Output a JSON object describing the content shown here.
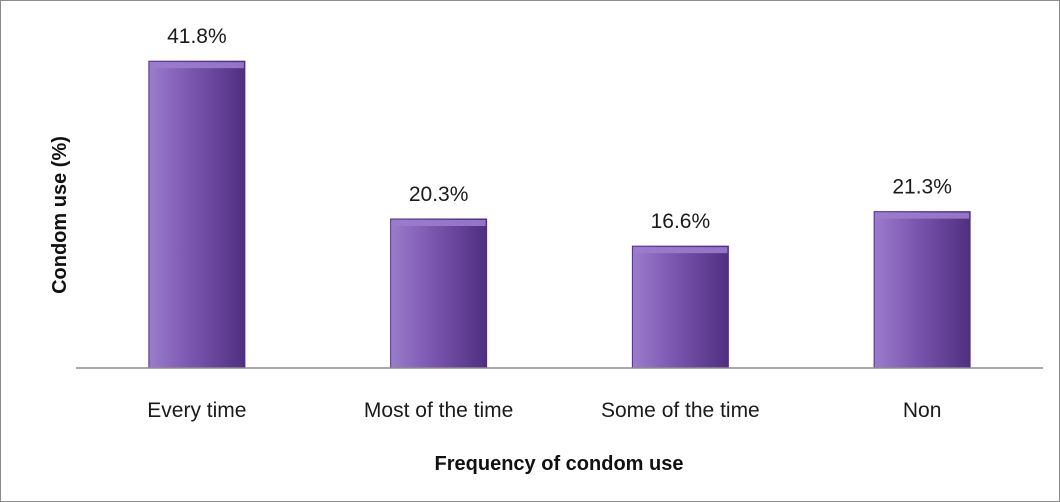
{
  "chart_data": {
    "type": "bar",
    "title": "",
    "xlabel": "Frequency of condom use",
    "ylabel": "Condom use (%)",
    "categories": [
      "Every time",
      "Most of the time",
      "Some of the time",
      "Non"
    ],
    "values": [
      41.8,
      20.3,
      16.6,
      21.3
    ],
    "value_labels": [
      "41.8%",
      "20.3%",
      "16.6%",
      "21.3%"
    ],
    "ylim": [
      0,
      45
    ],
    "grid": false,
    "legend": "none",
    "bar_color": "#7a55ae",
    "bar_color_light": "#9b7ccc",
    "bar_color_dark": "#4f2f80"
  }
}
